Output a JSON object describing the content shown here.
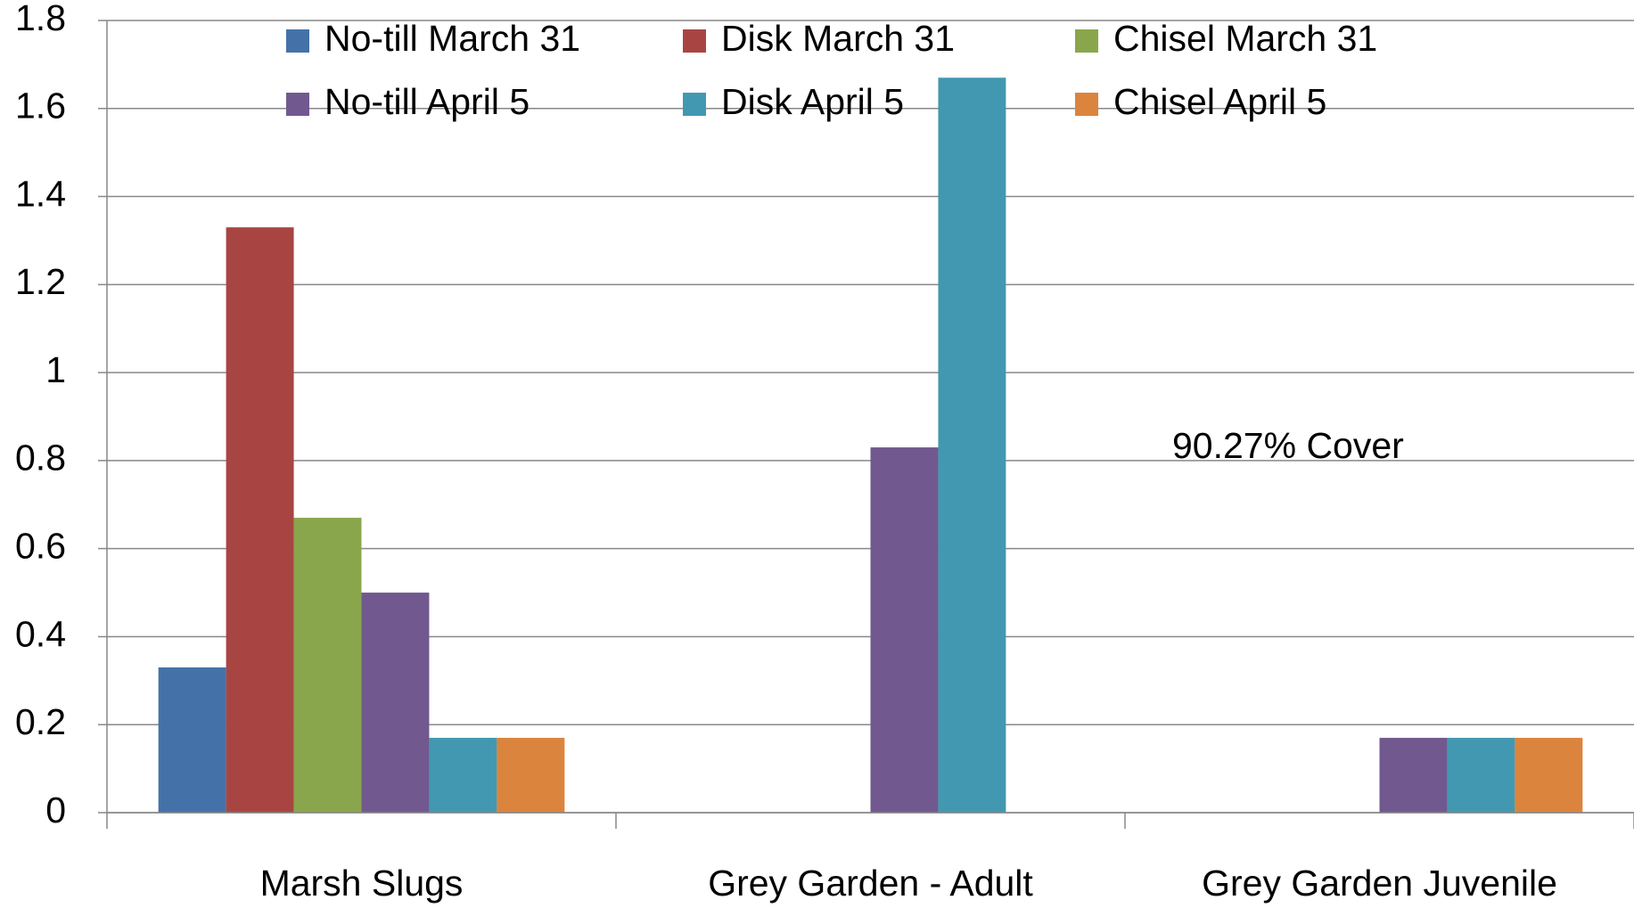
{
  "chart_data": {
    "type": "bar",
    "categories": [
      "Marsh Slugs",
      "Grey Garden - Adult",
      "Grey Garden Juvenile"
    ],
    "series": [
      {
        "name": "No-till March 31",
        "color": "#4472a8",
        "values": [
          0.33,
          0,
          0
        ]
      },
      {
        "name": "Disk March 31",
        "color": "#a84543",
        "values": [
          1.33,
          0,
          0
        ]
      },
      {
        "name": "Chisel March 31",
        "color": "#8aa64c",
        "values": [
          0.67,
          0,
          0
        ]
      },
      {
        "name": "No-till April 5",
        "color": "#71598f",
        "values": [
          0.5,
          0.83,
          0.17
        ]
      },
      {
        "name": "Disk  April 5",
        "color": "#4298b0",
        "values": [
          0.17,
          1.67,
          0.17
        ]
      },
      {
        "name": "Chisel April 5",
        "color": "#db843d",
        "values": [
          0.17,
          0,
          0.17
        ]
      }
    ],
    "annotation": "90.27% Cover",
    "ylim": [
      0,
      1.8
    ],
    "yticks": [
      0,
      0.2,
      0.4,
      0.6,
      0.8,
      1,
      1.2,
      1.4,
      1.6,
      1.8
    ],
    "grid": true
  }
}
